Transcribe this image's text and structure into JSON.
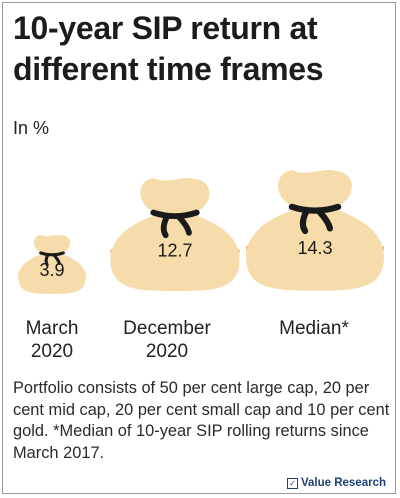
{
  "title": "10-year SIP return at different time frames",
  "unit": "In %",
  "chart_data": {
    "type": "bar",
    "categories": [
      "March 2020",
      "December 2020",
      "Median*"
    ],
    "values": [
      3.9,
      12.7,
      14.3
    ],
    "data_labels": [
      "3.9",
      "12.7",
      "14.3"
    ]
  },
  "categories_display": [
    [
      "March",
      "2020"
    ],
    [
      "December",
      "2020"
    ],
    [
      "Median*",
      ""
    ]
  ],
  "note": "Portfolio consists of 50 per cent large cap, 20 per cent mid cap, 20 per cent small cap and 10 per cent gold. *Median of 10-year SIP rolling returns since March 2017.",
  "brand": {
    "name": "Value Research",
    "mark": "✓"
  },
  "colors": {
    "bag": "#f5dcaa",
    "bag_shadow": "#e8b24e",
    "tie": "#1a1a1a",
    "text": "#1a1a1a"
  }
}
